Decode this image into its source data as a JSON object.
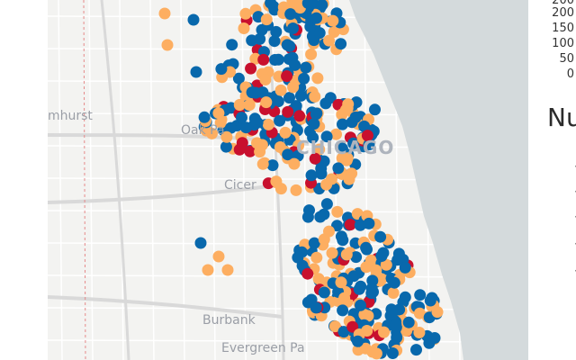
{
  "map": {
    "labels": {
      "elmhurst": "mhurst",
      "oak_park": "Oak Pa",
      "chicago": "CHICAGO",
      "cicero": "Cicer",
      "burbank": "Burbank",
      "evergreen_park": "Evergreen Pa"
    },
    "colors": {
      "orange": "#fdae61",
      "blue": "#0868ac",
      "red": "#c8102e",
      "lake": "#d4dadc",
      "land": "#f3f3f1",
      "roads": "#ffffff",
      "highway": "#d9d9d9"
    }
  },
  "legend": {
    "ticks": [
      "200",
      "200",
      "150",
      "100",
      "50",
      "0"
    ],
    "title": "Nu"
  }
}
